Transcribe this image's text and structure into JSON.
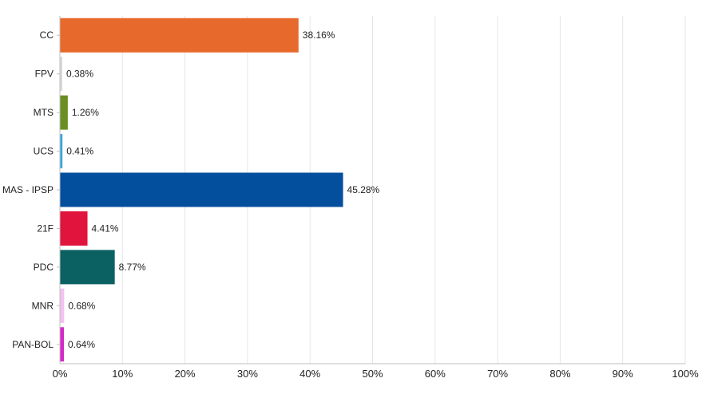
{
  "chart_data": {
    "type": "bar",
    "orientation": "horizontal",
    "categories": [
      "CC",
      "FPV",
      "MTS",
      "UCS",
      "MAS - IPSP",
      "21F",
      "PDC",
      "MNR",
      "PAN-BOL"
    ],
    "values": [
      38.16,
      0.38,
      1.26,
      0.41,
      45.28,
      4.41,
      8.77,
      0.68,
      0.64
    ],
    "data_labels": [
      "38.16%",
      "0.38%",
      "1.26%",
      "0.41%",
      "45.28%",
      "4.41%",
      "8.77%",
      "0.68%",
      "0.64%"
    ],
    "colors": [
      "#e8692c",
      "#d9d9d9",
      "#6b8e23",
      "#3ba7d9",
      "#044e9e",
      "#e0143c",
      "#0b6161",
      "#f2c2f0",
      "#d42ac8"
    ],
    "xlim": [
      0,
      100
    ],
    "x_ticks": [
      0,
      10,
      20,
      30,
      40,
      50,
      60,
      70,
      80,
      90,
      100
    ],
    "x_tick_labels": [
      "0%",
      "10%",
      "20%",
      "30%",
      "40%",
      "50%",
      "60%",
      "70%",
      "80%",
      "90%",
      "100%"
    ],
    "grid": true,
    "legend": "none",
    "title": "",
    "xlabel": "",
    "ylabel": ""
  }
}
